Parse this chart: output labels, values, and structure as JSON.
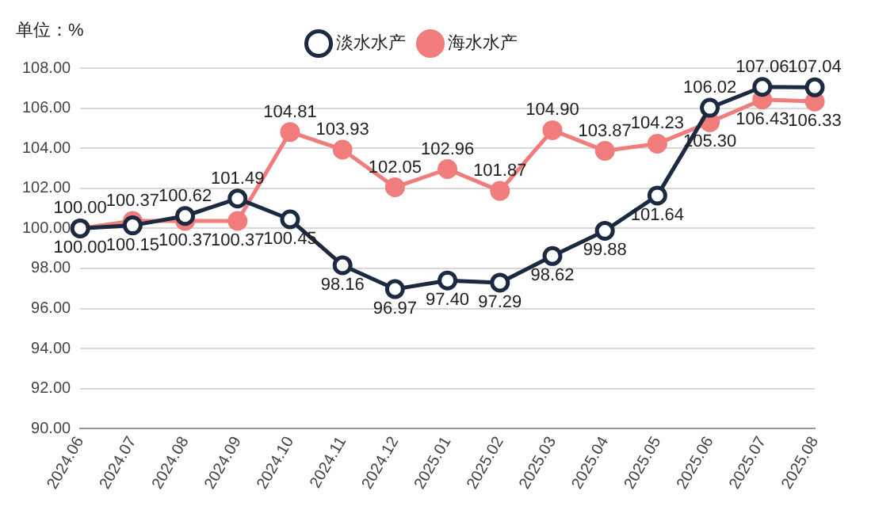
{
  "chart_data": {
    "type": "line",
    "ylabel": "单位：%",
    "categories": [
      "2024.06",
      "2024.07",
      "2024.08",
      "2024.09",
      "2024.10",
      "2024.11",
      "2024.12",
      "2025.01",
      "2025.02",
      "2025.03",
      "2025.04",
      "2025.05",
      "2025.06",
      "2025.07",
      "2025.08"
    ],
    "series": [
      {
        "name": "淡水水产",
        "color": "#1b2a41",
        "values": [
          100.0,
          100.15,
          100.62,
          101.49,
          100.45,
          98.16,
          96.97,
          97.4,
          97.29,
          98.62,
          99.88,
          101.64,
          106.02,
          107.06,
          107.04
        ],
        "value_labels": [
          "100.00",
          "100.15",
          "100.62",
          "101.49",
          "100.45",
          "98.16",
          "96.97",
          "97.40",
          "97.29",
          "98.62",
          "99.88",
          "101.64",
          "106.02",
          "107.06",
          "107.04"
        ]
      },
      {
        "name": "海水水产",
        "color": "#f07c7c",
        "values": [
          100.0,
          100.37,
          100.37,
          100.37,
          104.81,
          103.93,
          102.05,
          102.96,
          101.87,
          104.9,
          103.87,
          104.23,
          105.3,
          106.43,
          106.33
        ],
        "value_labels": [
          "100.00",
          "100.37",
          "100.37",
          "100.37",
          "104.81",
          "103.93",
          "102.05",
          "102.96",
          "101.87",
          "104.90",
          "103.87",
          "104.23",
          "105.30",
          "106.43",
          "106.33"
        ]
      }
    ],
    "ylim": [
      90,
      108
    ],
    "yticks": [
      {
        "value": 90,
        "label": "90.00"
      },
      {
        "value": 92,
        "label": "92.00"
      },
      {
        "value": 94,
        "label": "94.00"
      },
      {
        "value": 96,
        "label": "96.00"
      },
      {
        "value": 98,
        "label": "98.00"
      },
      {
        "value": 100,
        "label": "100.00"
      },
      {
        "value": 102,
        "label": "102.00"
      },
      {
        "value": 104,
        "label": "104.00"
      },
      {
        "value": 106,
        "label": "106.00"
      },
      {
        "value": 108,
        "label": "108.00"
      }
    ],
    "grid": "y",
    "legend": "top",
    "marker": "circle",
    "line_style": "solid"
  }
}
